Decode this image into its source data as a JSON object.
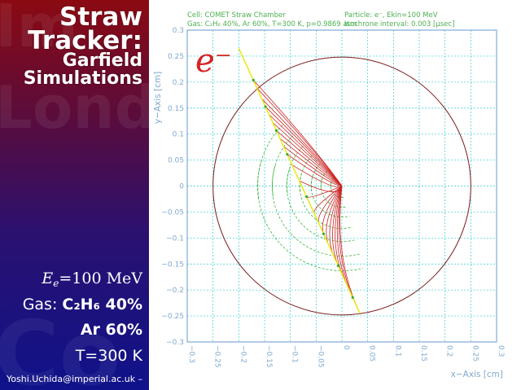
{
  "slide": {
    "title_line1": "Straw",
    "title_line2": "Tracker:",
    "title_line3": "Garfield",
    "title_line4": "Simulations",
    "bg_words": [
      "Im",
      "Lond",
      "Co"
    ],
    "energy": {
      "symbol": "E",
      "sub": "e",
      "value": "=100 MeV"
    },
    "gas_label": "Gas: ",
    "gas_line1": "C₂H₆ 40%",
    "gas_line2": "Ar 60%",
    "temperature": "T=300 K",
    "email": "Yoshi.Uchida@imperial.ac.uk"
  },
  "plot": {
    "cap_left1": "Cell: COMET Straw Chamber",
    "cap_left2": "Gas: C₂H₆ 40%, Ar 60%, T=300 K, p=0.9869 atm",
    "cap_right1": "Particle: e⁻, Ekin=100 MeV",
    "cap_right2": "Isochrone interval: 0.003 [μsec]",
    "xlabel": "x−Axis [cm]",
    "ylabel": "y−Axis [cm]",
    "particle_label": "e⁻",
    "x_ticks": [
      "−0.3",
      "−0.25",
      "−0.2",
      "−0.15",
      "−0.1",
      "−0.05",
      "0",
      "0.05",
      "0.1",
      "0.15",
      "0.2",
      "0.25",
      "0.3"
    ],
    "y_ticks": [
      "0.3",
      "0.25",
      "0.2",
      "0.15",
      "0.1",
      "0.05",
      "0",
      "−0.05",
      "−0.1",
      "−0.15",
      "−0.2",
      "−0.25",
      "−0.3"
    ],
    "xlim": [
      -0.3,
      0.3
    ],
    "ylim": [
      -0.3,
      0.3
    ],
    "straw_radius_cm": 0.25,
    "track": {
      "start": [
        -0.2,
        0.265
      ],
      "end": [
        0.035,
        -0.245
      ]
    },
    "colors": {
      "grid": "#33cccc",
      "frame": "#6699cc",
      "straw": "#7a1a1a",
      "track": "#e8e800",
      "drift": "#cc2222",
      "isochrone": "#22aa22"
    }
  }
}
